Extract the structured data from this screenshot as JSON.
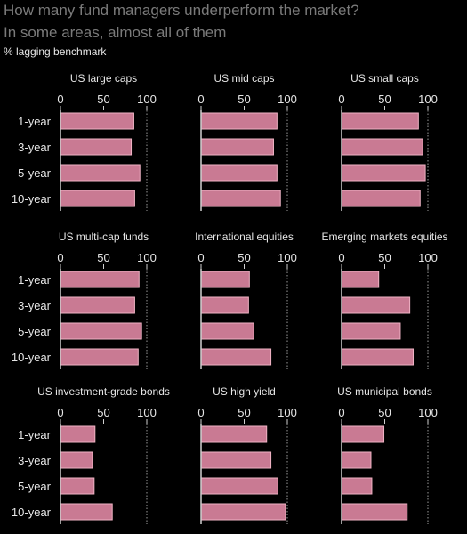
{
  "header": {
    "title": "How many fund managers underperform the market?",
    "subtitle": "In some areas, almost all of them",
    "unit_label": "% lagging benchmark"
  },
  "colors": {
    "background": "#000000",
    "bar": "#c97a93",
    "bar_stroke": "#efb3c4",
    "text": "#e6e6e6",
    "title": "#7a7a7a",
    "axis": "#cfcfcf"
  },
  "chart_data": [
    {
      "type": "bar",
      "orientation": "horizontal",
      "title": "US large caps",
      "categories": [
        "1-year",
        "3-year",
        "5-year",
        "10-year"
      ],
      "values": [
        85,
        82,
        92,
        86
      ],
      "xlim": [
        0,
        100
      ],
      "xticks": [
        0,
        50,
        100
      ]
    },
    {
      "type": "bar",
      "orientation": "horizontal",
      "title": "US mid caps",
      "categories": [
        "1-year",
        "3-year",
        "5-year",
        "10-year"
      ],
      "values": [
        88,
        84,
        88,
        92
      ],
      "xlim": [
        0,
        100
      ],
      "xticks": [
        0,
        50,
        100
      ]
    },
    {
      "type": "bar",
      "orientation": "horizontal",
      "title": "US small caps",
      "categories": [
        "1-year",
        "3-year",
        "5-year",
        "10-year"
      ],
      "values": [
        89,
        94,
        97,
        91
      ],
      "xlim": [
        0,
        100
      ],
      "xticks": [
        0,
        50,
        100
      ]
    },
    {
      "type": "bar",
      "orientation": "horizontal",
      "title": "US multi-cap funds",
      "categories": [
        "1-year",
        "3-year",
        "5-year",
        "10-year"
      ],
      "values": [
        91,
        86,
        94,
        90
      ],
      "xlim": [
        0,
        100
      ],
      "xticks": [
        0,
        50,
        100
      ]
    },
    {
      "type": "bar",
      "orientation": "horizontal",
      "title": "International equities",
      "categories": [
        "1-year",
        "3-year",
        "5-year",
        "10-year"
      ],
      "values": [
        56,
        55,
        61,
        81
      ],
      "xlim": [
        0,
        100
      ],
      "xticks": [
        0,
        50,
        100
      ]
    },
    {
      "type": "bar",
      "orientation": "horizontal",
      "title": "Emerging markets equities",
      "categories": [
        "1-year",
        "3-year",
        "5-year",
        "10-year"
      ],
      "values": [
        43,
        79,
        68,
        83
      ],
      "xlim": [
        0,
        100
      ],
      "xticks": [
        0,
        50,
        100
      ]
    },
    {
      "type": "bar",
      "orientation": "horizontal",
      "title": "US investment-grade bonds",
      "categories": [
        "1-year",
        "3-year",
        "5-year",
        "10-year"
      ],
      "values": [
        40,
        37,
        39,
        60
      ],
      "xlim": [
        0,
        100
      ],
      "xticks": [
        0,
        50,
        100
      ]
    },
    {
      "type": "bar",
      "orientation": "horizontal",
      "title": "US high yield",
      "categories": [
        "1-year",
        "3-year",
        "5-year",
        "10-year"
      ],
      "values": [
        76,
        81,
        89,
        98
      ],
      "xlim": [
        0,
        100
      ],
      "xticks": [
        0,
        50,
        100
      ]
    },
    {
      "type": "bar",
      "orientation": "horizontal",
      "title": "US municipal bonds",
      "categories": [
        "1-year",
        "3-year",
        "5-year",
        "10-year"
      ],
      "values": [
        49,
        34,
        35,
        76
      ],
      "xlim": [
        0,
        100
      ],
      "xticks": [
        0,
        50,
        100
      ]
    }
  ]
}
